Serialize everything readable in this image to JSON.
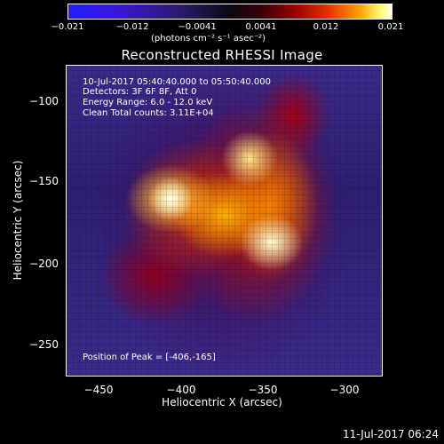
{
  "colorbar": {
    "ticks": [
      "−0.021",
      "−0.012",
      "−0.0041",
      "0.0041",
      "0.012",
      "0.021"
    ],
    "units": "(photons cm⁻² s⁻¹ asec⁻²)"
  },
  "title": "Reconstructed RHESSI Image",
  "info": {
    "time_range": "10-Jul-2017 05:40:40.000 to 05:50:40.000",
    "detectors": "Detectors: 3F 6F 8F, Att 0",
    "energy": "Energy Range: 6.0 - 12.0 keV",
    "method": "Clean    Total counts: 3.11E+04",
    "peak": "Position of Peak = [-406,-165]"
  },
  "axes": {
    "xlabel": "Heliocentric X (arcsec)",
    "ylabel": "Heliocentric Y (arcsec)",
    "x_ticks": [
      "−450",
      "−400",
      "−350",
      "−300"
    ],
    "y_ticks": [
      "−100",
      "−150",
      "−200",
      "−250"
    ]
  },
  "timestamp": "11-Jul-2017 06:24"
}
